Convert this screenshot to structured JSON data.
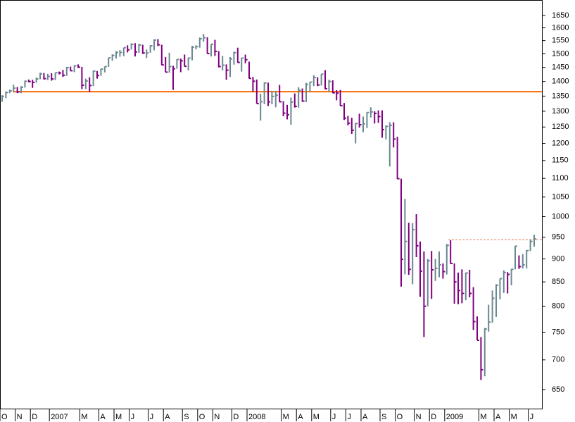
{
  "chart_data": {
    "type": "ohlc",
    "log": true,
    "ylim": [
      620,
      1715
    ],
    "yticks": [
      650,
      700,
      750,
      800,
      850,
      900,
      950,
      1000,
      1050,
      1100,
      1150,
      1200,
      1250,
      1300,
      1350,
      1400,
      1450,
      1500,
      1550,
      1600,
      1650
    ],
    "up_color": "#6a8890",
    "down_color": "#800080",
    "categories": [
      "O",
      null,
      null,
      null,
      "N",
      null,
      null,
      null,
      "D",
      null,
      null,
      null,
      null,
      "2007",
      null,
      null,
      null,
      null,
      null,
      null,
      null,
      "M",
      null,
      null,
      null,
      null,
      "A",
      null,
      null,
      null,
      "M",
      null,
      null,
      null,
      "J",
      null,
      null,
      null,
      null,
      "J",
      null,
      null,
      null,
      "A",
      null,
      null,
      null,
      null,
      "S",
      null,
      null,
      null,
      "O",
      null,
      null,
      null,
      "N",
      null,
      null,
      null,
      null,
      "D",
      null,
      null,
      null,
      "2008",
      null,
      null,
      null,
      null,
      null,
      null,
      null,
      null,
      "M",
      null,
      null,
      null,
      "A",
      null,
      null,
      null,
      "M",
      null,
      null,
      null,
      null,
      "J",
      null,
      null,
      null,
      "J",
      null,
      null,
      null,
      "A",
      null,
      null,
      null,
      null,
      "S",
      null,
      null,
      null,
      "O",
      null,
      null,
      null,
      null,
      "N",
      null,
      null,
      null,
      "D",
      null,
      null,
      null,
      "2009",
      null,
      null,
      null,
      null,
      null,
      null,
      null,
      null,
      "M",
      null,
      null,
      null,
      "A",
      null,
      null,
      null,
      "M",
      null,
      null,
      null,
      null,
      "J",
      null
    ],
    "high": [
      1353,
      1366,
      1372,
      1389,
      1381,
      1384,
      1403,
      1407,
      1406,
      1414,
      1431,
      1430,
      1427,
      1429,
      1431,
      1435,
      1441,
      1452,
      1453,
      1457,
      1461,
      1452,
      1410,
      1415,
      1438,
      1437,
      1445,
      1453,
      1485,
      1498,
      1510,
      1514,
      1523,
      1532,
      1540,
      1540,
      1538,
      1534,
      1516,
      1532,
      1555,
      1556,
      1534,
      1488,
      1504,
      1456,
      1480,
      1482,
      1497,
      1486,
      1530,
      1532,
      1562,
      1576,
      1563,
      1536,
      1553,
      1510,
      1492,
      1461,
      1488,
      1508,
      1523,
      1485,
      1497,
      1471,
      1416,
      1407,
      1358,
      1396,
      1396,
      1368,
      1368,
      1388,
      1333,
      1321,
      1345,
      1359,
      1380,
      1376,
      1395,
      1398,
      1422,
      1415,
      1426,
      1440,
      1406,
      1404,
      1370,
      1371,
      1327,
      1285,
      1279,
      1263,
      1292,
      1283,
      1297,
      1313,
      1300,
      1303,
      1303,
      1255,
      1265,
      1265,
      1220,
      1099,
      1045,
      985,
      984,
      1006,
      940,
      917,
      900,
      918,
      900,
      917,
      890,
      934,
      943,
      890,
      870,
      877,
      870,
      876,
      839,
      780,
      741,
      758,
      803,
      832,
      845,
      857,
      875,
      871,
      878,
      930,
      908,
      911,
      920,
      945,
      956
    ],
    "low": [
      1331,
      1343,
      1360,
      1363,
      1360,
      1360,
      1379,
      1397,
      1378,
      1396,
      1408,
      1407,
      1405,
      1403,
      1405,
      1425,
      1416,
      1420,
      1437,
      1433,
      1448,
      1374,
      1374,
      1364,
      1384,
      1410,
      1420,
      1432,
      1452,
      1474,
      1482,
      1489,
      1491,
      1505,
      1516,
      1490,
      1504,
      1500,
      1484,
      1504,
      1513,
      1529,
      1458,
      1433,
      1431,
      1371,
      1445,
      1433,
      1453,
      1439,
      1476,
      1517,
      1523,
      1546,
      1500,
      1490,
      1492,
      1450,
      1439,
      1406,
      1416,
      1460,
      1467,
      1435,
      1465,
      1410,
      1364,
      1325,
      1270,
      1323,
      1317,
      1323,
      1313,
      1330,
      1284,
      1274,
      1257,
      1312,
      1312,
      1331,
      1330,
      1364,
      1384,
      1384,
      1386,
      1373,
      1365,
      1360,
      1336,
      1317,
      1272,
      1255,
      1229,
      1200,
      1248,
      1234,
      1247,
      1280,
      1261,
      1263,
      1217,
      1212,
      1133,
      1188,
      1098,
      840,
      866,
      865,
      845,
      904,
      819,
      741,
      800,
      815,
      852,
      860,
      857,
      866,
      889,
      805,
      804,
      806,
      812,
      818,
      754,
      735,
      666,
      672,
      751,
      768,
      779,
      814,
      827,
      826,
      843,
      877,
      878,
      879,
      879,
      918,
      928
    ],
    "close": [
      1349,
      1362,
      1368,
      1377,
      1364,
      1380,
      1401,
      1400,
      1397,
      1409,
      1427,
      1410,
      1418,
      1409,
      1431,
      1430,
      1422,
      1449,
      1438,
      1456,
      1451,
      1387,
      1402,
      1386,
      1437,
      1421,
      1444,
      1453,
      1485,
      1494,
      1505,
      1505,
      1523,
      1515,
      1536,
      1507,
      1533,
      1503,
      1503,
      1530,
      1552,
      1534,
      1459,
      1433,
      1453,
      1445,
      1479,
      1474,
      1454,
      1484,
      1525,
      1527,
      1557,
      1561,
      1501,
      1536,
      1509,
      1453,
      1458,
      1440,
      1481,
      1504,
      1468,
      1484,
      1478,
      1411,
      1401,
      1325,
      1331,
      1395,
      1331,
      1349,
      1353,
      1331,
      1294,
      1289,
      1330,
      1316,
      1370,
      1333,
      1390,
      1398,
      1414,
      1388,
      1426,
      1375,
      1400,
      1361,
      1360,
      1318,
      1278,
      1262,
      1240,
      1261,
      1257,
      1260,
      1296,
      1298,
      1293,
      1283,
      1242,
      1252,
      1255,
      1213,
      1099,
      899,
      940,
      877,
      968,
      930,
      873,
      800,
      896,
      876,
      879,
      887,
      872,
      931,
      890,
      850,
      832,
      826,
      869,
      826,
      770,
      735,
      683,
      756,
      769,
      816,
      843,
      857,
      870,
      866,
      877,
      929,
      883,
      887,
      919,
      940,
      946
    ],
    "levels": [
      {
        "value": 1365,
        "color": "#ff6a00",
        "style": "solid"
      },
      {
        "value": 944,
        "color": "#e07a5a",
        "style": "dashed"
      }
    ]
  }
}
